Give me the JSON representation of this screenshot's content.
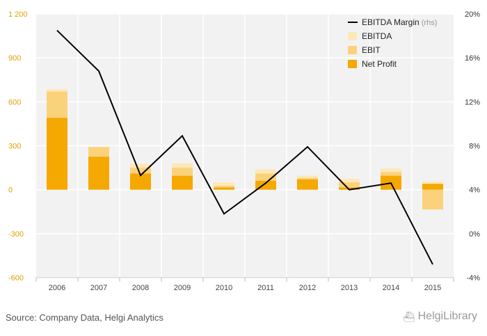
{
  "chart_data": {
    "type": "bar",
    "categories": [
      "2006",
      "2007",
      "2008",
      "2009",
      "2010",
      "2011",
      "2012",
      "2013",
      "2014",
      "2015"
    ],
    "series": [
      {
        "name": "Net Profit",
        "values": [
          490,
          225,
          110,
          95,
          15,
          60,
          70,
          15,
          95,
          40
        ],
        "color": "#f5a800"
      },
      {
        "name": "EBIT",
        "values": [
          670,
          290,
          150,
          150,
          25,
          110,
          80,
          50,
          120,
          -135
        ],
        "color": "#fbd27c"
      },
      {
        "name": "EBITDA",
        "values": [
          685,
          295,
          175,
          180,
          50,
          140,
          95,
          75,
          145,
          55
        ],
        "color": "#fde8b8"
      },
      {
        "name": "EBITDA Margin",
        "axis": "rhs",
        "type": "line",
        "values": [
          18.5,
          14.8,
          5.3,
          8.9,
          1.8,
          4.6,
          7.9,
          4.0,
          4.6,
          -2.8
        ],
        "color": "#000000"
      }
    ],
    "ylim": [
      -600,
      1200
    ],
    "yticks": [
      -600,
      -300,
      0,
      300,
      600,
      900,
      1200
    ],
    "ytick_labels": [
      "-600",
      "-300",
      "0",
      "300",
      "600",
      "900",
      "1 200"
    ],
    "y2lim": [
      -4,
      20
    ],
    "y2ticks": [
      -4,
      0,
      4,
      8,
      12,
      16,
      20
    ],
    "y2tick_labels": [
      "-4%",
      "0%",
      "4%",
      "8%",
      "12%",
      "16%",
      "20%"
    ],
    "legend": [
      {
        "label": "EBITDA Margin",
        "suffix": "(rhs)",
        "marker": "line",
        "color": "#000000"
      },
      {
        "label": "EBITDA",
        "marker": "box",
        "color": "#fde8b8"
      },
      {
        "label": "EBIT",
        "marker": "box",
        "color": "#fbd27c"
      },
      {
        "label": "Net Profit",
        "marker": "box",
        "color": "#f5a800"
      }
    ],
    "legend_position": "top-right",
    "grid": true
  },
  "footer": {
    "source": "Source: Company Data, Helgi Analytics",
    "logo_text": "HelgiLibrary"
  },
  "colors": {
    "left_axis_labels": "#e0a000",
    "plot_bg": "#f2f2f2",
    "grid": "#ffffff"
  }
}
